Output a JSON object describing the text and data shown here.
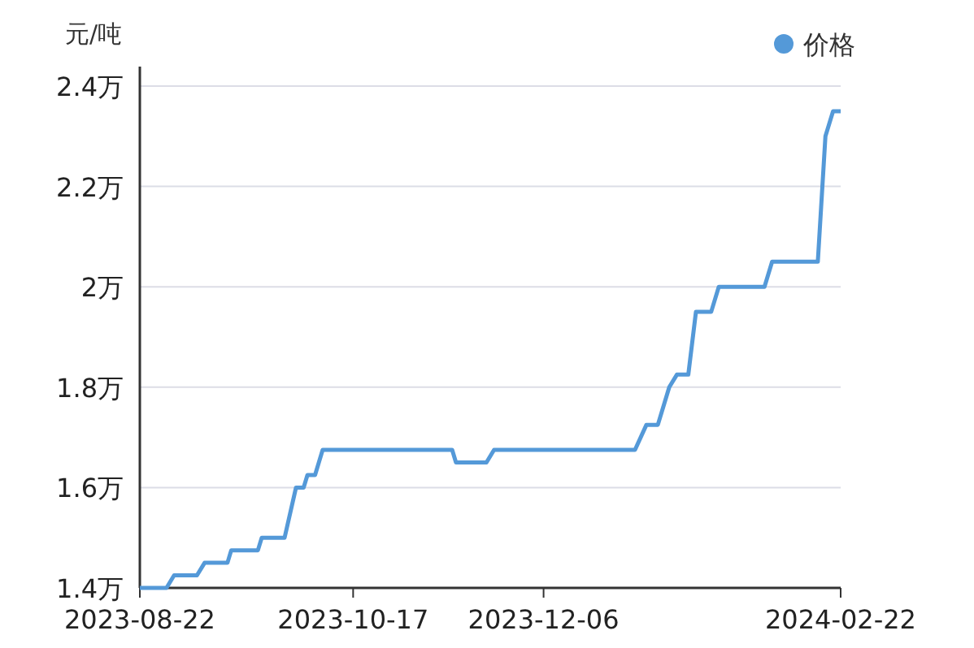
{
  "chart_data": {
    "type": "line",
    "ylabel": "元/吨",
    "x": [
      "2023-08-22",
      "2023-08-29",
      "2023-08-31",
      "2023-09-06",
      "2023-09-08",
      "2023-09-14",
      "2023-09-15",
      "2023-09-22",
      "2023-09-23",
      "2023-09-29",
      "2023-10-02",
      "2023-10-04",
      "2023-10-05",
      "2023-10-07",
      "2023-10-09",
      "2023-11-12",
      "2023-11-13",
      "2023-11-21",
      "2023-11-23",
      "2023-12-30",
      "2024-01-02",
      "2024-01-05",
      "2024-01-08",
      "2024-01-10",
      "2024-01-13",
      "2024-01-15",
      "2024-01-19",
      "2024-01-21",
      "2024-02-02",
      "2024-02-04",
      "2024-02-16",
      "2024-02-18",
      "2024-02-20",
      "2024-02-22"
    ],
    "series": [
      {
        "name": "价格",
        "color": "#5499d8",
        "values": [
          1.4,
          1.4,
          1.425,
          1.425,
          1.45,
          1.45,
          1.475,
          1.475,
          1.5,
          1.5,
          1.6,
          1.6,
          1.625,
          1.625,
          1.675,
          1.675,
          1.65,
          1.65,
          1.675,
          1.675,
          1.725,
          1.725,
          1.8,
          1.825,
          1.825,
          1.95,
          1.95,
          2.0,
          2.0,
          2.05,
          2.05,
          2.3,
          2.35,
          2.35
        ]
      }
    ],
    "xlim": [
      "2023-08-22",
      "2024-02-22"
    ],
    "xticks": [
      "2023-08-22",
      "2023-10-17",
      "2023-12-06",
      "2024-02-22"
    ],
    "ylim": [
      1.4,
      2.4
    ],
    "yticks": [
      {
        "value": 1.4,
        "label": "1.4万"
      },
      {
        "value": 1.6,
        "label": "1.6万"
      },
      {
        "value": 1.8,
        "label": "1.8万"
      },
      {
        "value": 2,
        "label": "2万"
      },
      {
        "value": 2.2,
        "label": "2.2万"
      },
      {
        "value": 2.4,
        "label": "2.4万"
      }
    ],
    "grid": "y",
    "legend": "top right",
    "marker": "none",
    "line_style": "solid"
  }
}
